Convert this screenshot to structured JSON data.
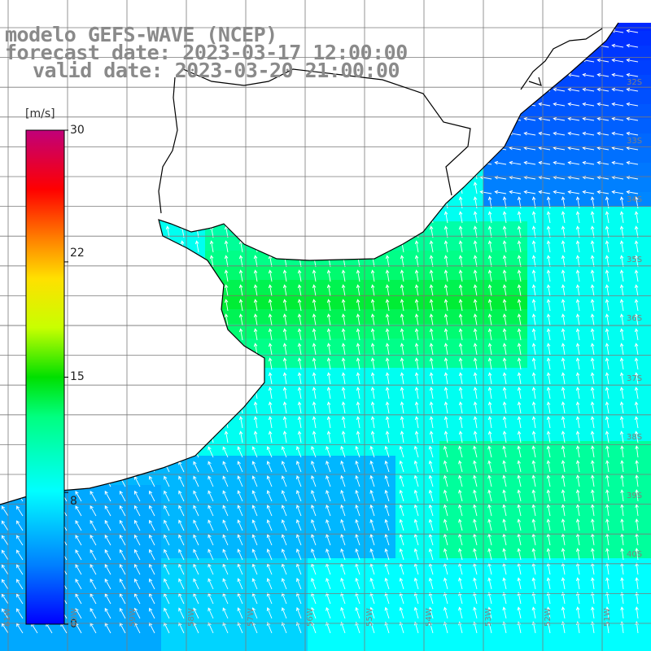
{
  "title": {
    "line1": "modelo GEFS-WAVE (NCEP)",
    "line2": "forecast date: 2023-03-17 12:00:00",
    "line3": "valid date: 2023-03-20 21:00:00"
  },
  "colorbar": {
    "unit": "[m/s]",
    "min": 0,
    "max": 30,
    "ticks": [
      {
        "value": 30,
        "label": "30"
      },
      {
        "value": 22,
        "label": "22"
      },
      {
        "value": 15,
        "label": "15"
      },
      {
        "value": 8,
        "label": "8"
      },
      {
        "value": 0,
        "label": "0"
      }
    ]
  },
  "colors": {
    "land": "#ffffff",
    "grid": "#7a7a7a",
    "coast": "#000000",
    "arrow": "#ffffff",
    "title": "#8a8a8a"
  },
  "lat_labels": [
    "32S",
    "33S",
    "34S",
    "35S",
    "36S",
    "37S",
    "38S",
    "39S",
    "40S"
  ],
  "lon_labels": [
    "61W",
    "60W",
    "59W",
    "58W",
    "57W",
    "56W",
    "55W",
    "54W",
    "53W",
    "52W",
    "51W"
  ]
}
